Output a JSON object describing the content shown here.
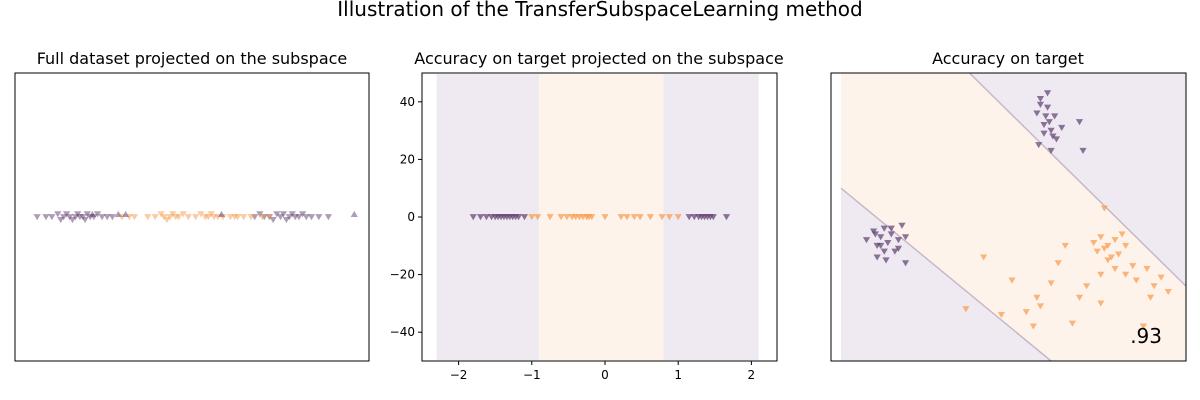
{
  "figure": {
    "title": "Illustration of the TransferSubspaceLearning method",
    "colors": {
      "class0": "#5e3c6e",
      "class1": "#f89848",
      "region0": "#efe9f2",
      "region1": "#fef3eb",
      "boundary": "#c8b8c6"
    }
  },
  "chart_data": [
    {
      "type": "scatter",
      "title": "Full dataset projected on the subspace",
      "xlim": [
        -2.4,
        2.4
      ],
      "ylim": [
        -50,
        50
      ],
      "axes_visible": false,
      "series": [
        {
          "class": 0,
          "marker": "triangle-down",
          "alpha": 0.5,
          "x": [
            -2.1,
            -1.98,
            -1.9,
            -1.82,
            -1.78,
            -1.74,
            -1.7,
            -1.66,
            -1.62,
            -1.58,
            -1.55,
            -1.52,
            -1.48,
            -1.45,
            -1.42,
            -1.38,
            -1.33,
            -1.28,
            -1.22,
            -1.15,
            -1.08,
            0.85,
            0.92,
            0.98,
            1.05,
            1.1,
            1.15,
            1.2,
            1.24,
            1.28,
            1.32,
            1.36,
            1.4,
            1.45,
            1.5,
            1.55,
            1.62,
            1.72,
            1.85
          ],
          "y": [
            0,
            0,
            0,
            1,
            -1,
            0,
            1,
            0,
            -1,
            0,
            1,
            0,
            0,
            -1,
            1,
            0,
            0,
            1,
            0,
            0,
            0,
            0,
            1,
            0,
            0,
            -1,
            1,
            0,
            1,
            -1,
            0,
            1,
            0,
            0,
            1,
            0,
            0,
            0,
            0
          ]
        },
        {
          "class": 1,
          "marker": "triangle-down",
          "alpha": 0.5,
          "x": [
            -0.95,
            -0.85,
            -0.78,
            -0.6,
            -0.5,
            -0.42,
            -0.38,
            -0.34,
            -0.3,
            -0.26,
            -0.22,
            -0.18,
            -0.12,
            -0.05,
            0.05,
            0.12,
            0.18,
            0.22,
            0.26,
            0.3,
            0.35,
            0.42,
            0.52,
            0.58,
            0.62,
            0.7,
            0.8,
            0.95,
            1.05
          ],
          "y": [
            0,
            0,
            0,
            0,
            0,
            1,
            0,
            -1,
            0,
            1,
            0,
            0,
            1,
            0,
            0,
            1,
            0,
            0,
            1,
            0,
            0,
            0,
            0,
            0,
            0,
            0,
            0,
            0,
            0
          ]
        },
        {
          "class": 0,
          "marker": "triangle-up",
          "alpha": 0.5,
          "x": [
            -1.35,
            -1.0,
            -0.9,
            0.4,
            2.2
          ],
          "y": [
            1,
            1,
            1,
            1,
            1
          ]
        }
      ]
    },
    {
      "type": "scatter",
      "title": "Accuracy on target projected on the subspace",
      "xlim": [
        -2.5,
        2.35
      ],
      "ylim": [
        -50,
        50
      ],
      "xticks": [
        -2,
        -1,
        0,
        1,
        2
      ],
      "yticks": [
        -40,
        -20,
        0,
        20,
        40
      ],
      "regions": [
        {
          "class": 0,
          "x": [
            -2.3,
            -0.9
          ]
        },
        {
          "class": 1,
          "x": [
            -0.9,
            0.8
          ]
        },
        {
          "class": 0,
          "x": [
            0.8,
            2.1
          ]
        }
      ],
      "series": [
        {
          "class": 0,
          "marker": "triangle-down",
          "alpha": 0.7,
          "x": [
            -1.8,
            -1.7,
            -1.62,
            -1.55,
            -1.5,
            -1.46,
            -1.42,
            -1.38,
            -1.34,
            -1.3,
            -1.26,
            -1.22,
            -1.18,
            -1.1,
            1.15,
            1.22,
            1.28,
            1.32,
            1.36,
            1.4,
            1.44,
            1.48,
            1.66
          ],
          "y": [
            0,
            0,
            0,
            0,
            0,
            0,
            0,
            0,
            0,
            0,
            0,
            0,
            0,
            0,
            0,
            0,
            0,
            0,
            0,
            0,
            0,
            0,
            0
          ]
        },
        {
          "class": 1,
          "marker": "triangle-down",
          "alpha": 0.7,
          "x": [
            -1.0,
            -0.92,
            -0.75,
            -0.6,
            -0.52,
            -0.45,
            -0.4,
            -0.35,
            -0.3,
            -0.25,
            -0.22,
            -0.18,
            0.0,
            0.22,
            0.3,
            0.4,
            0.48,
            0.62,
            0.78,
            0.88,
            1.0
          ],
          "y": [
            0,
            0,
            0,
            0,
            0,
            0,
            0,
            0,
            0,
            0,
            0,
            0,
            0,
            0,
            0,
            0,
            0,
            0,
            0,
            0,
            0
          ]
        }
      ]
    },
    {
      "type": "scatter",
      "title": "Accuracy on target",
      "xlim": [
        0,
        10
      ],
      "ylim": [
        0,
        10
      ],
      "axes_visible": false,
      "score": ".93",
      "boundaries": [
        {
          "points": [
            [
              0,
              6.0
            ],
            [
              6.2,
              0
            ]
          ]
        },
        {
          "points": [
            [
              3.9,
              10
            ],
            [
              10,
              2.6
            ]
          ]
        }
      ],
      "series": [
        {
          "class": 0,
          "marker": "triangle-down",
          "alpha": 0.7,
          "x": [
            5.8,
            5.9,
            6.0,
            6.05,
            6.1,
            6.15,
            6.2,
            6.25,
            6.3,
            5.85,
            6.0,
            6.2,
            6.35,
            6.5,
            7.0,
            7.1,
            5.9,
            6.1,
            1.0,
            1.2,
            1.3,
            1.4,
            1.5,
            1.6,
            1.7,
            1.8,
            1.9,
            2.0,
            2.1,
            1.3,
            1.5,
            1.7,
            1.9,
            1.55,
            1.25,
            2.1,
            1.4
          ],
          "y": [
            8.6,
            8.9,
            8.2,
            8.5,
            8.8,
            8.3,
            8.0,
            7.8,
            8.5,
            7.5,
            7.9,
            7.3,
            7.7,
            8.1,
            8.3,
            7.3,
            9.1,
            9.3,
            4.2,
            4.5,
            4.0,
            4.3,
            4.6,
            4.1,
            4.4,
            3.8,
            4.2,
            4.7,
            4.3,
            3.6,
            3.8,
            4.6,
            3.9,
            3.5,
            4.4,
            3.4,
            4.0
          ]
        },
        {
          "class": 1,
          "marker": "triangle-down",
          "alpha": 0.7,
          "x": [
            7.4,
            7.6,
            7.8,
            8.0,
            8.2,
            7.5,
            7.7,
            7.9,
            8.1,
            8.3,
            8.5,
            7.6,
            7.8,
            8.0,
            8.3,
            8.6,
            8.9,
            9.1,
            9.3,
            9.5,
            7.2,
            7.0,
            7.7,
            6.6,
            6.4,
            6.2,
            5.8,
            5.5,
            4.8,
            6.8,
            5.7,
            3.8,
            4.3,
            5.1,
            8.8,
            5.9,
            9.0,
            7.6
          ],
          "y": [
            4.1,
            4.3,
            4.0,
            4.2,
            4.4,
            3.8,
            3.9,
            3.6,
            3.7,
            4.0,
            3.3,
            3.0,
            3.5,
            3.2,
            3.0,
            2.8,
            3.2,
            2.6,
            2.9,
            2.4,
            2.6,
            2.2,
            5.3,
            4.0,
            3.4,
            2.7,
            2.2,
            1.7,
            1.6,
            1.3,
            1.2,
            1.8,
            3.6,
            2.8,
            1.2,
            1.9,
            2.2,
            2.0
          ]
        }
      ]
    }
  ]
}
